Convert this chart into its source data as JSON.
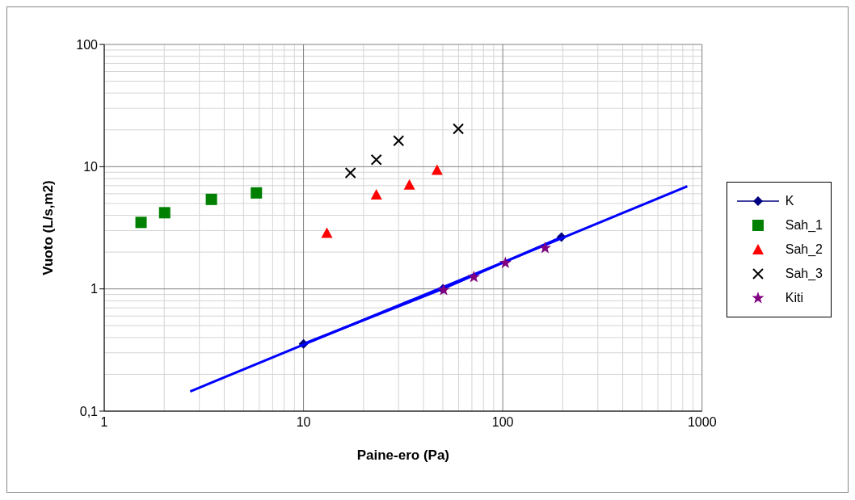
{
  "chart_data": {
    "type": "scatter",
    "xlabel": "Paine-ero (Pa)",
    "ylabel": "Vuoto (L/s,m2)",
    "log": "xy",
    "xlim": [
      1,
      1000
    ],
    "xticks": [
      1,
      10,
      100,
      1000
    ],
    "ylim": [
      0.1,
      100
    ],
    "yticks": [
      {
        "value": 0.1,
        "label": "0,1"
      },
      1,
      10,
      100
    ],
    "grid": true,
    "legend": "right",
    "series": [
      {
        "name": "K",
        "type": "line",
        "marker": "diamond",
        "color": "#0000ff",
        "x": [
          10,
          50,
          197
        ],
        "values": [
          0.355,
          1.0,
          2.65
        ]
      },
      {
        "type": "line",
        "marker": "none",
        "color": "#0000ff",
        "x": [
          2.7,
          843
        ],
        "values": [
          0.145,
          6.9
        ]
      },
      {
        "name": "Sah_1",
        "marker": "square",
        "color": "#008000",
        "x": [
          1.53,
          2.01,
          3.45,
          5.8
        ],
        "values": [
          3.5,
          4.2,
          5.4,
          6.1
        ]
      },
      {
        "name": "Sah_2",
        "marker": "triangle",
        "color": "#ff0000",
        "x": [
          13.1,
          23.2,
          34,
          46.8
        ],
        "values": [
          2.86,
          5.9,
          7.1,
          9.4
        ]
      },
      {
        "name": "Sah_3",
        "marker": "cross",
        "color": "#000000",
        "x": [
          17.2,
          23.2,
          30,
          59.8
        ],
        "values": [
          8.9,
          11.4,
          16.3,
          20.4
        ]
      },
      {
        "name": "Kiti",
        "marker": "star",
        "color": "#800080",
        "x": [
          50.5,
          71.6,
          103,
          163
        ],
        "values": [
          0.98,
          1.25,
          1.63,
          2.16
        ]
      }
    ]
  }
}
